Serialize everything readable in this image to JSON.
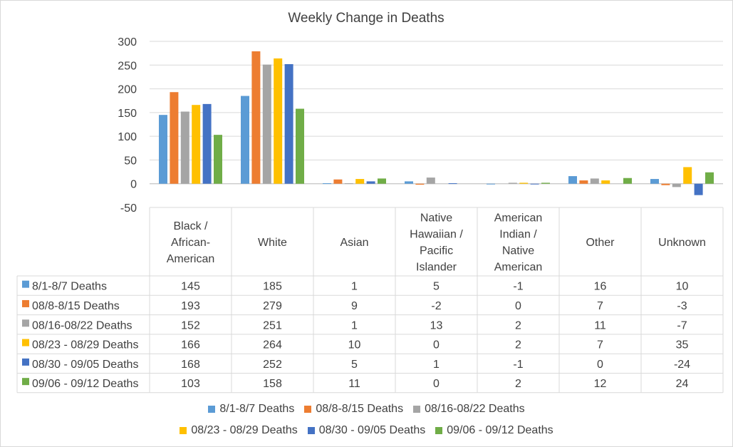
{
  "chart_data": {
    "type": "bar",
    "title": "Weekly Change in Deaths",
    "categories": [
      [
        "Black /",
        "African-",
        "American"
      ],
      [
        "White"
      ],
      [
        "Asian"
      ],
      [
        "Native",
        "Hawaiian /",
        "Pacific",
        "Islander"
      ],
      [
        "American",
        "Indian /",
        "Native",
        "American"
      ],
      [
        "Other"
      ],
      [
        "Unknown"
      ]
    ],
    "ylim": [
      -50,
      300
    ],
    "yticks": [
      -50,
      0,
      50,
      100,
      150,
      200,
      250,
      300
    ],
    "grid": true,
    "legend": "bottom",
    "data_table": true,
    "series": [
      {
        "name": "8/1-8/7 Deaths",
        "color": "#5b9bd5",
        "values": [
          145,
          185,
          1,
          5,
          -1,
          16,
          10
        ]
      },
      {
        "name": "08/8-8/15 Deaths",
        "color": "#ed7d31",
        "values": [
          193,
          279,
          9,
          -2,
          0,
          7,
          -3
        ]
      },
      {
        "name": "08/16-08/22 Deaths",
        "color": "#a5a5a5",
        "values": [
          152,
          251,
          1,
          13,
          2,
          11,
          -7
        ]
      },
      {
        "name": "08/23 - 08/29 Deaths",
        "color": "#ffc000",
        "values": [
          166,
          264,
          10,
          0,
          2,
          7,
          35
        ]
      },
      {
        "name": "08/30 - 09/05 Deaths",
        "color": "#4472c4",
        "values": [
          168,
          252,
          5,
          1,
          -1,
          0,
          -24
        ]
      },
      {
        "name": "09/06 - 09/12 Deaths",
        "color": "#70ad47",
        "values": [
          103,
          158,
          11,
          0,
          2,
          12,
          24
        ]
      }
    ]
  }
}
